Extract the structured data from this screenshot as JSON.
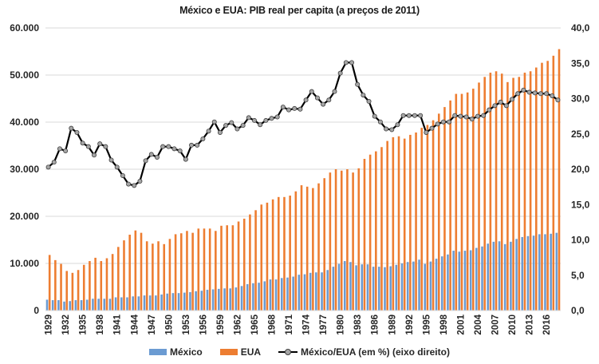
{
  "chart_data": {
    "type": "bar+line",
    "title": "México e EUA: PIB real per capita (a preços de 2011)",
    "xlabel": "",
    "ylabel_left": "",
    "ylabel_right": "",
    "ylim_left": [
      0,
      60000
    ],
    "ylim_right": [
      0,
      40
    ],
    "yticks_left": [
      "0",
      "10.000",
      "20.000",
      "30.000",
      "40.000",
      "50.000",
      "60.000"
    ],
    "yticks_right": [
      "0,0",
      "5,0",
      "10,0",
      "15,0",
      "20,0",
      "25,0",
      "30,0",
      "35,0",
      "40,0"
    ],
    "grid": true,
    "legend_position": "bottom",
    "year_start": 1929,
    "year_end": 2018,
    "xtick_labels": [
      "1929",
      "1932",
      "1935",
      "1938",
      "1941",
      "1944",
      "1947",
      "1950",
      "1953",
      "1956",
      "1959",
      "1962",
      "1965",
      "1968",
      "1971",
      "1974",
      "1977",
      "1980",
      "1983",
      "1986",
      "1989",
      "1992",
      "1995",
      "1998",
      "2001",
      "2004",
      "2007",
      "2010",
      "2013",
      "2016"
    ],
    "colors": {
      "mexico": "#6b9bd2",
      "eua": "#ed7d31",
      "ratio_line": "#000000",
      "ratio_marker": "#a6a6a6"
    },
    "series": [
      {
        "name": "México",
        "type": "bar",
        "axis": "left",
        "values": [
          2300,
          2200,
          2200,
          1900,
          2000,
          2200,
          2200,
          2300,
          2500,
          2500,
          2500,
          2500,
          2800,
          2800,
          2800,
          3000,
          3000,
          3200,
          3200,
          3200,
          3400,
          3600,
          3700,
          3700,
          3800,
          3900,
          4100,
          4200,
          4400,
          4500,
          4600,
          4700,
          4700,
          4900,
          5200,
          5600,
          5800,
          5900,
          6200,
          6600,
          6600,
          6900,
          7000,
          7200,
          7600,
          7700,
          8000,
          8100,
          8100,
          8600,
          9300,
          9900,
          10500,
          10300,
          9600,
          9800,
          9800,
          9300,
          9300,
          9200,
          9400,
          9700,
          10000,
          10300,
          10400,
          10800,
          9900,
          10400,
          11000,
          11500,
          11900,
          12700,
          12500,
          12700,
          12800,
          13300,
          13600,
          14200,
          14600,
          14700,
          14100,
          14600,
          15200,
          15600,
          15800,
          15900,
          16200,
          16200,
          16300,
          16500
        ]
      },
      {
        "name": "EUA",
        "type": "bar",
        "axis": "left",
        "values": [
          11800,
          10700,
          9900,
          8400,
          8000,
          8600,
          9700,
          10500,
          11200,
          10500,
          11100,
          12000,
          13500,
          14900,
          16100,
          17000,
          16500,
          14700,
          14200,
          14700,
          14100,
          15200,
          16200,
          16400,
          16900,
          16500,
          17400,
          17400,
          17400,
          16900,
          18000,
          18100,
          18100,
          18900,
          19500,
          20400,
          21300,
          22500,
          22900,
          23600,
          24100,
          24100,
          24400,
          25300,
          26600,
          26300,
          26000,
          27000,
          28100,
          29300,
          30000,
          29700,
          30000,
          29300,
          30200,
          32200,
          33100,
          33800,
          34700,
          36000,
          36800,
          37000,
          36500,
          37300,
          37800,
          38800,
          39400,
          40400,
          41800,
          43200,
          44600,
          46000,
          46000,
          46300,
          47100,
          48400,
          49600,
          50500,
          50800,
          50300,
          48500,
          49400,
          49600,
          50500,
          50800,
          51600,
          52600,
          53000,
          54100,
          55500
        ]
      },
      {
        "name": "México/EUA (em %) (eixo direito)",
        "type": "line",
        "axis": "right",
        "values": [
          20.3,
          21.0,
          22.9,
          22.6,
          25.8,
          25.2,
          23.7,
          23.2,
          22.0,
          23.6,
          23.2,
          21.3,
          20.3,
          19.1,
          17.9,
          17.7,
          18.3,
          21.2,
          22.1,
          21.7,
          23.2,
          23.2,
          22.9,
          22.6,
          21.4,
          23.4,
          23.4,
          24.3,
          25.4,
          26.7,
          25.2,
          26.2,
          26.6,
          25.7,
          26.2,
          27.3,
          26.9,
          26.3,
          26.9,
          27.2,
          27.4,
          28.8,
          28.4,
          28.6,
          28.5,
          29.8,
          31.0,
          30.1,
          29.2,
          29.8,
          31.0,
          33.6,
          35.1,
          35.1,
          32.0,
          30.5,
          29.6,
          27.5,
          26.7,
          25.7,
          25.6,
          26.3,
          27.6,
          27.6,
          27.6,
          27.6,
          25.2,
          25.8,
          26.4,
          26.7,
          26.7,
          27.6,
          27.5,
          27.4,
          27.1,
          27.5,
          27.6,
          28.4,
          29.0,
          29.5,
          29.0,
          29.9,
          30.7,
          31.2,
          30.9,
          30.8,
          30.7,
          30.7,
          30.4,
          29.8
        ]
      }
    ]
  },
  "legend": {
    "mexico": "México",
    "eua": "EUA",
    "ratio": "México/EUA (em %) (eixo direito)"
  }
}
